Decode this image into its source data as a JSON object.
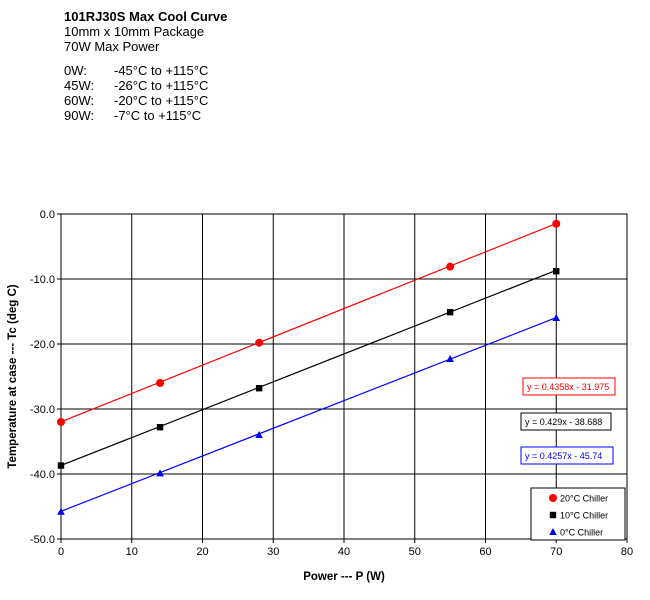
{
  "header": {
    "title": "101RJ30S Max Cool Curve",
    "package": "10mm x 10mm Package",
    "max_power": "70W Max Power",
    "specs": [
      {
        "power": "0W:",
        "range": "-45°C to +115°C"
      },
      {
        "power": "45W:",
        "range": "-26°C to +115°C"
      },
      {
        "power": "60W:",
        "range": "-20°C to +115°C"
      },
      {
        "power": "90W:",
        "range": "-7°C to +115°C"
      }
    ]
  },
  "chart_data": {
    "type": "scatter",
    "title": "",
    "xlabel": "Power --- P (W)",
    "ylabel": "Temperature at case --- Tc (deg C)",
    "xlim": [
      0,
      80
    ],
    "ylim": [
      -50,
      0
    ],
    "xticks": [
      0,
      10,
      20,
      30,
      40,
      50,
      60,
      70,
      80
    ],
    "yticks": [
      0,
      -10,
      -20,
      -30,
      -40,
      -50
    ],
    "ytick_labels": [
      "0.0",
      "-10.0",
      "-20.0",
      "-30.0",
      "-40.0",
      "-50.0"
    ],
    "grid": true,
    "legend_position": "bottom-right",
    "series": [
      {
        "name": "20°C Chiller",
        "color": "#ff0000",
        "marker": "circle",
        "x": [
          0,
          14,
          28,
          55,
          70
        ],
        "y": [
          -32.0,
          -26.0,
          -19.8,
          -8.1,
          -1.5
        ],
        "trendline": "y = 0.4358x - 31.975",
        "trend": {
          "slope": 0.4358,
          "intercept": -31.975
        }
      },
      {
        "name": "10°C Chiller",
        "color": "#000000",
        "marker": "square",
        "x": [
          0,
          14,
          28,
          55,
          70
        ],
        "y": [
          -38.7,
          -32.8,
          -26.8,
          -15.1,
          -8.8
        ],
        "trendline": "y = 0.429x - 38.688",
        "trend": {
          "slope": 0.429,
          "intercept": -38.688
        }
      },
      {
        "name": "0°C Chiller",
        "color": "#0000ff",
        "marker": "triangle",
        "x": [
          0,
          14,
          28,
          55,
          70
        ],
        "y": [
          -45.8,
          -39.9,
          -34.0,
          -22.3,
          -16.0
        ],
        "trendline": "y = 0.4257x - 45.74",
        "trend": {
          "slope": 0.4257,
          "intercept": -45.74
        }
      }
    ]
  }
}
